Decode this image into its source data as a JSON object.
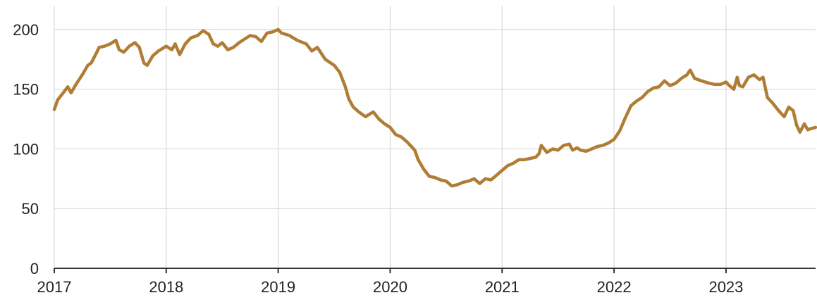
{
  "chart_data": {
    "type": "line",
    "title": "",
    "xlabel": "",
    "ylabel": "",
    "xlim": [
      2017.0,
      2023.8
    ],
    "ylim": [
      0,
      220
    ],
    "x_ticks": [
      "2017",
      "2018",
      "2019",
      "2020",
      "2021",
      "2022",
      "2023"
    ],
    "y_ticks": [
      "0",
      "50",
      "100",
      "150",
      "200"
    ],
    "grid": true,
    "legend": "none",
    "colors": {
      "line": "#b07d34",
      "grid": "#d9d9d9",
      "axis": "#333333"
    },
    "series": [
      {
        "x": [
          2017.0,
          2017.03,
          2017.08,
          2017.12,
          2017.15,
          2017.2,
          2017.25,
          2017.3,
          2017.33,
          2017.38,
          2017.4,
          2017.45,
          2017.5,
          2017.55,
          2017.58,
          2017.62,
          2017.67,
          2017.72,
          2017.76,
          2017.8,
          2017.83,
          2017.88,
          2017.93,
          2018.0,
          2018.05,
          2018.08,
          2018.12,
          2018.17,
          2018.22,
          2018.28,
          2018.33,
          2018.38,
          2018.42,
          2018.46,
          2018.5,
          2018.55,
          2018.6,
          2018.65,
          2018.7,
          2018.75,
          2018.8,
          2018.85,
          2018.9,
          2018.95,
          2019.0,
          2019.03,
          2019.1,
          2019.17,
          2019.25,
          2019.3,
          2019.35,
          2019.42,
          2019.5,
          2019.55,
          2019.6,
          2019.63,
          2019.67,
          2019.72,
          2019.78,
          2019.85,
          2019.9,
          2019.95,
          2020.0,
          2020.05,
          2020.1,
          2020.15,
          2020.22,
          2020.25,
          2020.3,
          2020.35,
          2020.4,
          2020.45,
          2020.5,
          2020.55,
          2020.6,
          2020.65,
          2020.7,
          2020.75,
          2020.8,
          2020.85,
          2020.9,
          2020.95,
          2021.0,
          2021.05,
          2021.1,
          2021.15,
          2021.2,
          2021.25,
          2021.3,
          2021.33,
          2021.35,
          2021.4,
          2021.45,
          2021.5,
          2021.55,
          2021.6,
          2021.63,
          2021.67,
          2021.7,
          2021.75,
          2021.8,
          2021.85,
          2021.9,
          2021.95,
          2022.0,
          2022.05,
          2022.1,
          2022.15,
          2022.2,
          2022.25,
          2022.3,
          2022.35,
          2022.4,
          2022.45,
          2022.5,
          2022.55,
          2022.6,
          2022.65,
          2022.68,
          2022.72,
          2022.78,
          2022.85,
          2022.9,
          2022.95,
          2023.0,
          2023.03,
          2023.07,
          2023.1,
          2023.12,
          2023.15,
          2023.2,
          2023.25,
          2023.3,
          2023.33,
          2023.37,
          2023.42,
          2023.47,
          2023.52,
          2023.56,
          2023.6,
          2023.63,
          2023.66,
          2023.7,
          2023.73,
          2023.76,
          2023.8
        ],
        "values": [
          133,
          141,
          147,
          152,
          147,
          155,
          162,
          170,
          172,
          181,
          185,
          186,
          188,
          191,
          183,
          181,
          186,
          189,
          185,
          172,
          170,
          178,
          182,
          186,
          183,
          188,
          179,
          188,
          193,
          195,
          199,
          196,
          188,
          186,
          189,
          183,
          185,
          189,
          192,
          195,
          194,
          190,
          197,
          198,
          200,
          197,
          195,
          191,
          188,
          182,
          185,
          175,
          170,
          164,
          152,
          142,
          135,
          131,
          127,
          131,
          125,
          121,
          118,
          112,
          110,
          106,
          99,
          91,
          83,
          77,
          76,
          74,
          73,
          69,
          70,
          72,
          73,
          75,
          71,
          75,
          74,
          78,
          82,
          86,
          88,
          91,
          91,
          92,
          93,
          96,
          103,
          97,
          100,
          99,
          103,
          104,
          99,
          101,
          99,
          98,
          100,
          102,
          103,
          105,
          108,
          115,
          126,
          136,
          140,
          143,
          148,
          151,
          152,
          157,
          153,
          155,
          159,
          162,
          166,
          159,
          157,
          155,
          154,
          154,
          156,
          153,
          150,
          160,
          153,
          152,
          160,
          162,
          158,
          160,
          143,
          138,
          132,
          127,
          135,
          132,
          120,
          114,
          121,
          116,
          117,
          118
        ]
      }
    ]
  }
}
